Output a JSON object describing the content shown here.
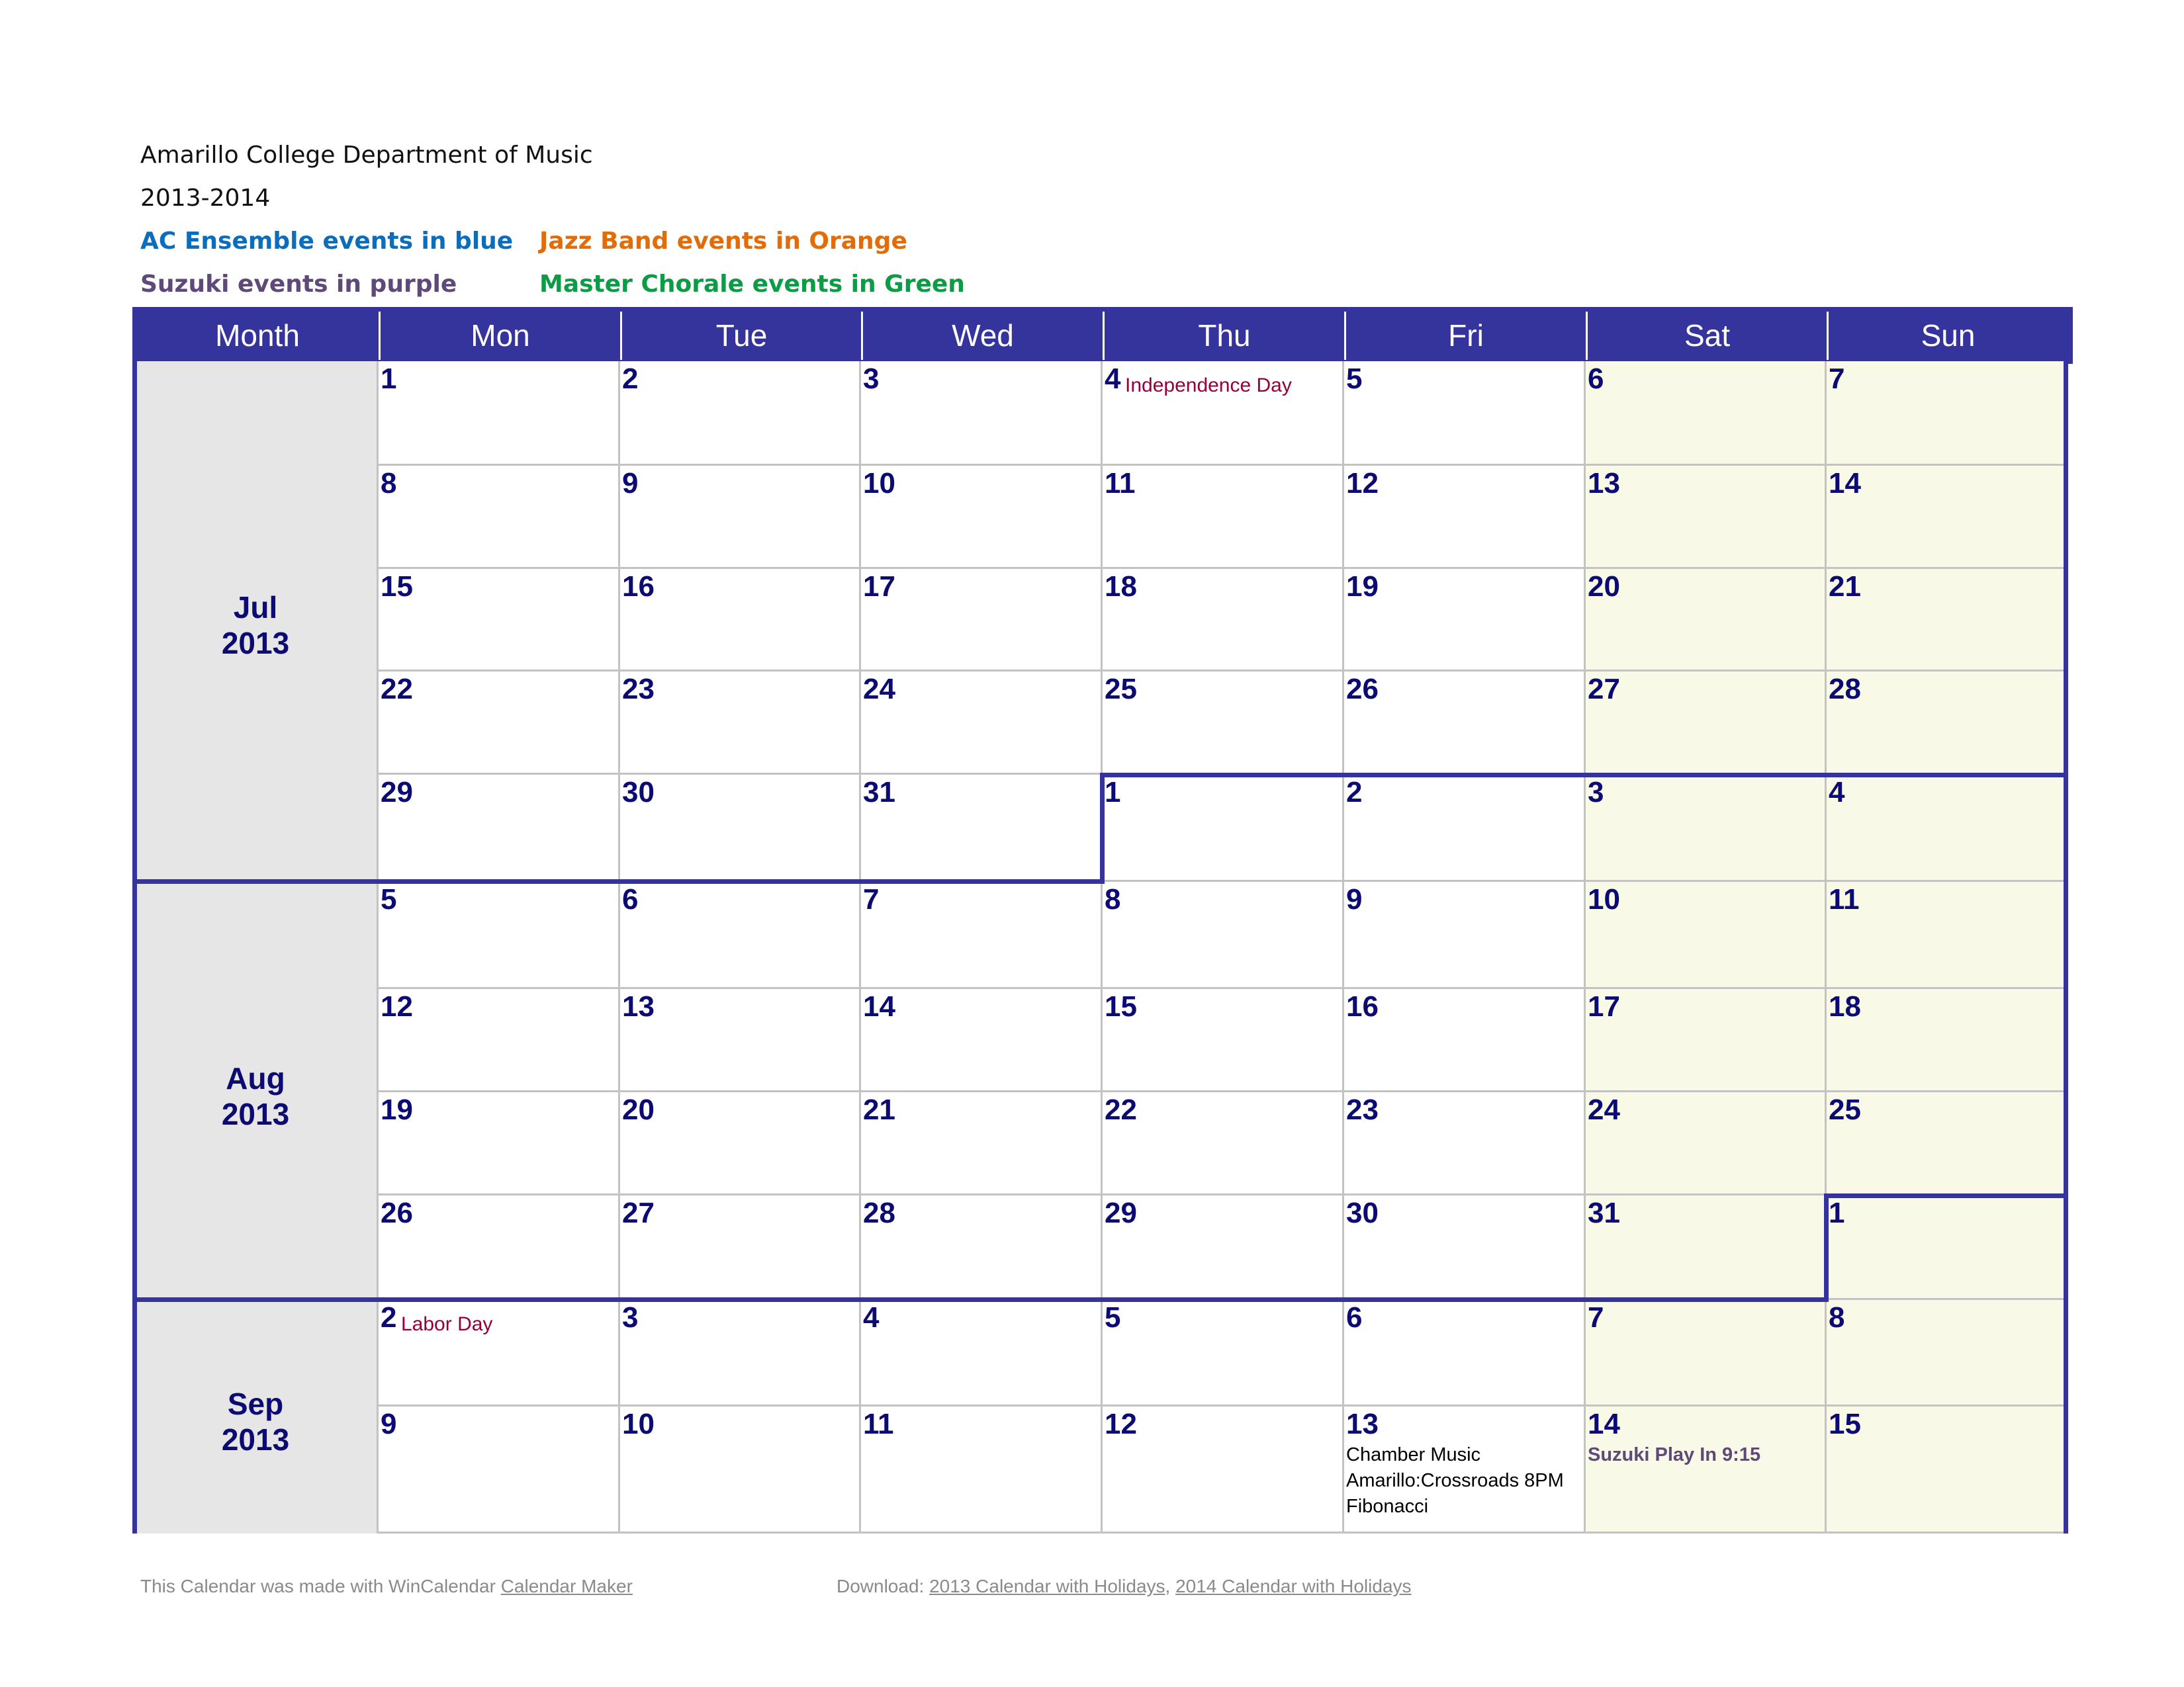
{
  "header": {
    "title": "Amarillo College Department of Music",
    "year": "2013-2014",
    "legend": [
      {
        "text": "AC Ensemble events in blue",
        "color": "#0b6dbb"
      },
      {
        "text": "Jazz Band events in Orange",
        "color": "#e36c09"
      },
      {
        "text": "Suzuki events in purple",
        "color": "#5f497a"
      },
      {
        "text": "Master Chorale events in Green",
        "color": "#0c9c45"
      }
    ]
  },
  "colors": {
    "border": "#35349c",
    "header_bg": "#35349c",
    "month_bg": "#e6e6e6",
    "weekend_bg": "#f8f9e6",
    "day_number": "#0b0b73",
    "holiday": "#95003a"
  },
  "columns": [
    "Month",
    "Mon",
    "Tue",
    "Wed",
    "Thu",
    "Fri",
    "Sat",
    "Sun"
  ],
  "months": [
    {
      "line1": "Jul",
      "line2": "2013"
    },
    {
      "line1": "Aug",
      "line2": "2013"
    },
    {
      "line1": "Sep",
      "line2": "2013"
    }
  ],
  "weeks": [
    {
      "days": [
        {
          "n": "1"
        },
        {
          "n": "2"
        },
        {
          "n": "3"
        },
        {
          "n": "4",
          "holiday": "Independence Day"
        },
        {
          "n": "5"
        },
        {
          "n": "6"
        },
        {
          "n": "7"
        }
      ]
    },
    {
      "days": [
        {
          "n": "8"
        },
        {
          "n": "9"
        },
        {
          "n": "10"
        },
        {
          "n": "11"
        },
        {
          "n": "12"
        },
        {
          "n": "13"
        },
        {
          "n": "14"
        }
      ]
    },
    {
      "days": [
        {
          "n": "15"
        },
        {
          "n": "16"
        },
        {
          "n": "17"
        },
        {
          "n": "18"
        },
        {
          "n": "19"
        },
        {
          "n": "20"
        },
        {
          "n": "21"
        }
      ]
    },
    {
      "days": [
        {
          "n": "22"
        },
        {
          "n": "23"
        },
        {
          "n": "24"
        },
        {
          "n": "25"
        },
        {
          "n": "26"
        },
        {
          "n": "27"
        },
        {
          "n": "28"
        }
      ]
    },
    {
      "days": [
        {
          "n": "29"
        },
        {
          "n": "30"
        },
        {
          "n": "31"
        },
        {
          "n": "1"
        },
        {
          "n": "2"
        },
        {
          "n": "3"
        },
        {
          "n": "4"
        }
      ]
    },
    {
      "days": [
        {
          "n": "5"
        },
        {
          "n": "6"
        },
        {
          "n": "7"
        },
        {
          "n": "8"
        },
        {
          "n": "9"
        },
        {
          "n": "10"
        },
        {
          "n": "11"
        }
      ]
    },
    {
      "days": [
        {
          "n": "12"
        },
        {
          "n": "13"
        },
        {
          "n": "14"
        },
        {
          "n": "15"
        },
        {
          "n": "16"
        },
        {
          "n": "17"
        },
        {
          "n": "18"
        }
      ]
    },
    {
      "days": [
        {
          "n": "19"
        },
        {
          "n": "20"
        },
        {
          "n": "21"
        },
        {
          "n": "22"
        },
        {
          "n": "23"
        },
        {
          "n": "24"
        },
        {
          "n": "25"
        }
      ]
    },
    {
      "days": [
        {
          "n": "26"
        },
        {
          "n": "27"
        },
        {
          "n": "28"
        },
        {
          "n": "29"
        },
        {
          "n": "30"
        },
        {
          "n": "31"
        },
        {
          "n": "1"
        }
      ]
    },
    {
      "days": [
        {
          "n": "2",
          "holiday": "Labor Day"
        },
        {
          "n": "3"
        },
        {
          "n": "4"
        },
        {
          "n": "5"
        },
        {
          "n": "6"
        },
        {
          "n": "7"
        },
        {
          "n": "8"
        }
      ]
    },
    {
      "days": [
        {
          "n": "9"
        },
        {
          "n": "10"
        },
        {
          "n": "11"
        },
        {
          "n": "12"
        },
        {
          "n": "13",
          "events": [
            {
              "text": "Chamber Music",
              "color": "#000000"
            },
            {
              "text": "Amarillo:Crossroads 8PM",
              "color": "#000000"
            },
            {
              "text": "Fibonacci",
              "color": "#000000"
            }
          ]
        },
        {
          "n": "14",
          "events": [
            {
              "text": "Suzuki Play In 9:15",
              "color": "#5f497a",
              "bold": true
            }
          ]
        },
        {
          "n": "15"
        }
      ]
    }
  ],
  "footer": {
    "made_with": "This Calendar was made with WinCalendar",
    "link_maker": "Calendar Maker",
    "download": "Download:",
    "link_2013": "2013 Calendar with Holidays",
    "separator": ",",
    "link_2014": "2014 Calendar with Holidays"
  }
}
